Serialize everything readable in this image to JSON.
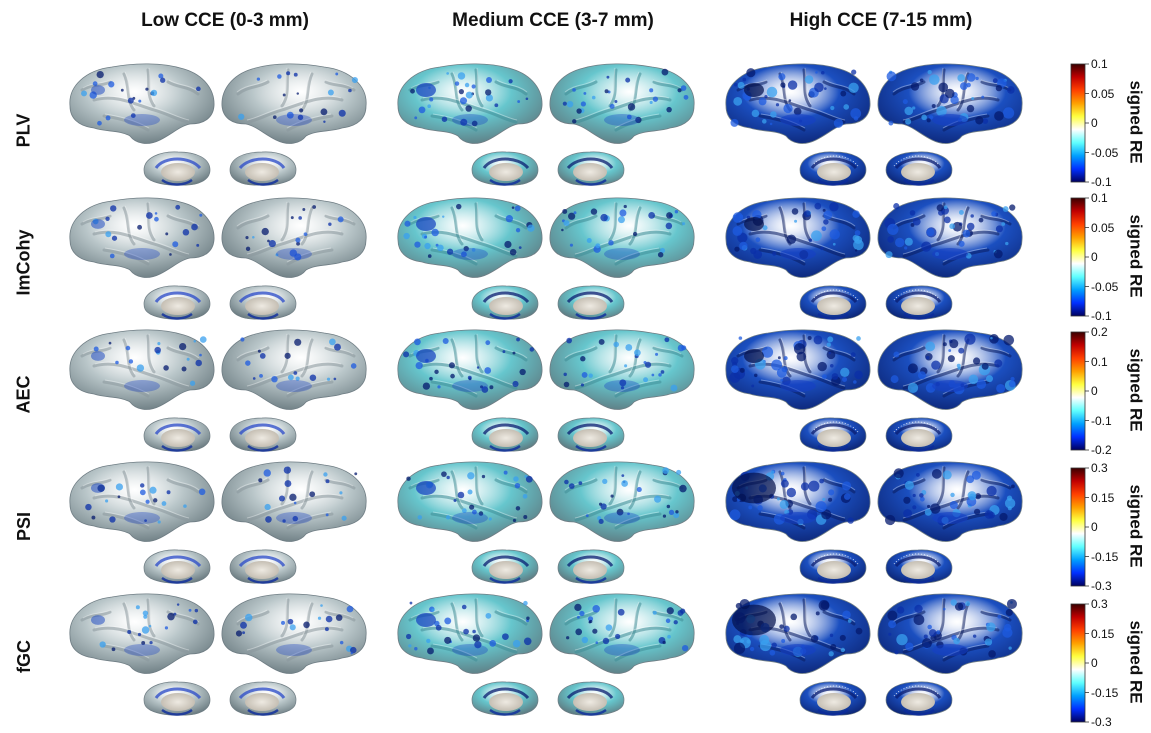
{
  "columns": [
    {
      "title": "Low CCE (0-3 mm)",
      "level": 0
    },
    {
      "title": "Medium CCE (3-7 mm)",
      "level": 1
    },
    {
      "title": "High CCE (7-15 mm)",
      "level": 2
    }
  ],
  "rows": [
    {
      "label": "PLV",
      "colorbar": {
        "title": "signed RE",
        "ticks": [
          "0.1",
          "0.05",
          "0",
          "-0.05",
          "-0.1"
        ]
      },
      "high_variant": "deep"
    },
    {
      "label": "ImCohy",
      "colorbar": {
        "title": "signed RE",
        "ticks": [
          "0.1",
          "0.05",
          "0",
          "-0.05",
          "-0.1"
        ]
      },
      "high_variant": "mid"
    },
    {
      "label": "AEC",
      "colorbar": {
        "title": "signed RE",
        "ticks": [
          "0.2",
          "0.1",
          "0",
          "-0.1",
          "-0.2"
        ]
      },
      "high_variant": "deep"
    },
    {
      "label": "PSI",
      "colorbar": {
        "title": "signed RE",
        "ticks": [
          "0.3",
          "0.15",
          "0",
          "-0.15",
          "-0.3"
        ]
      },
      "high_variant": "left-focus"
    },
    {
      "label": "fGC",
      "colorbar": {
        "title": "signed RE",
        "ticks": [
          "0.3",
          "0.15",
          "0",
          "-0.15",
          "-0.3"
        ]
      },
      "high_variant": "left-focus"
    }
  ],
  "colormap": [
    "#3a0000",
    "#c00000",
    "#ff4000",
    "#ffa000",
    "#ffff40",
    "#ffffff",
    "#60ffff",
    "#00a0ff",
    "#0030ff",
    "#000060"
  ],
  "surface_colors": {
    "low": "#b9c6c9",
    "medium": "#66c6cd",
    "high": "#1b4fc0"
  }
}
